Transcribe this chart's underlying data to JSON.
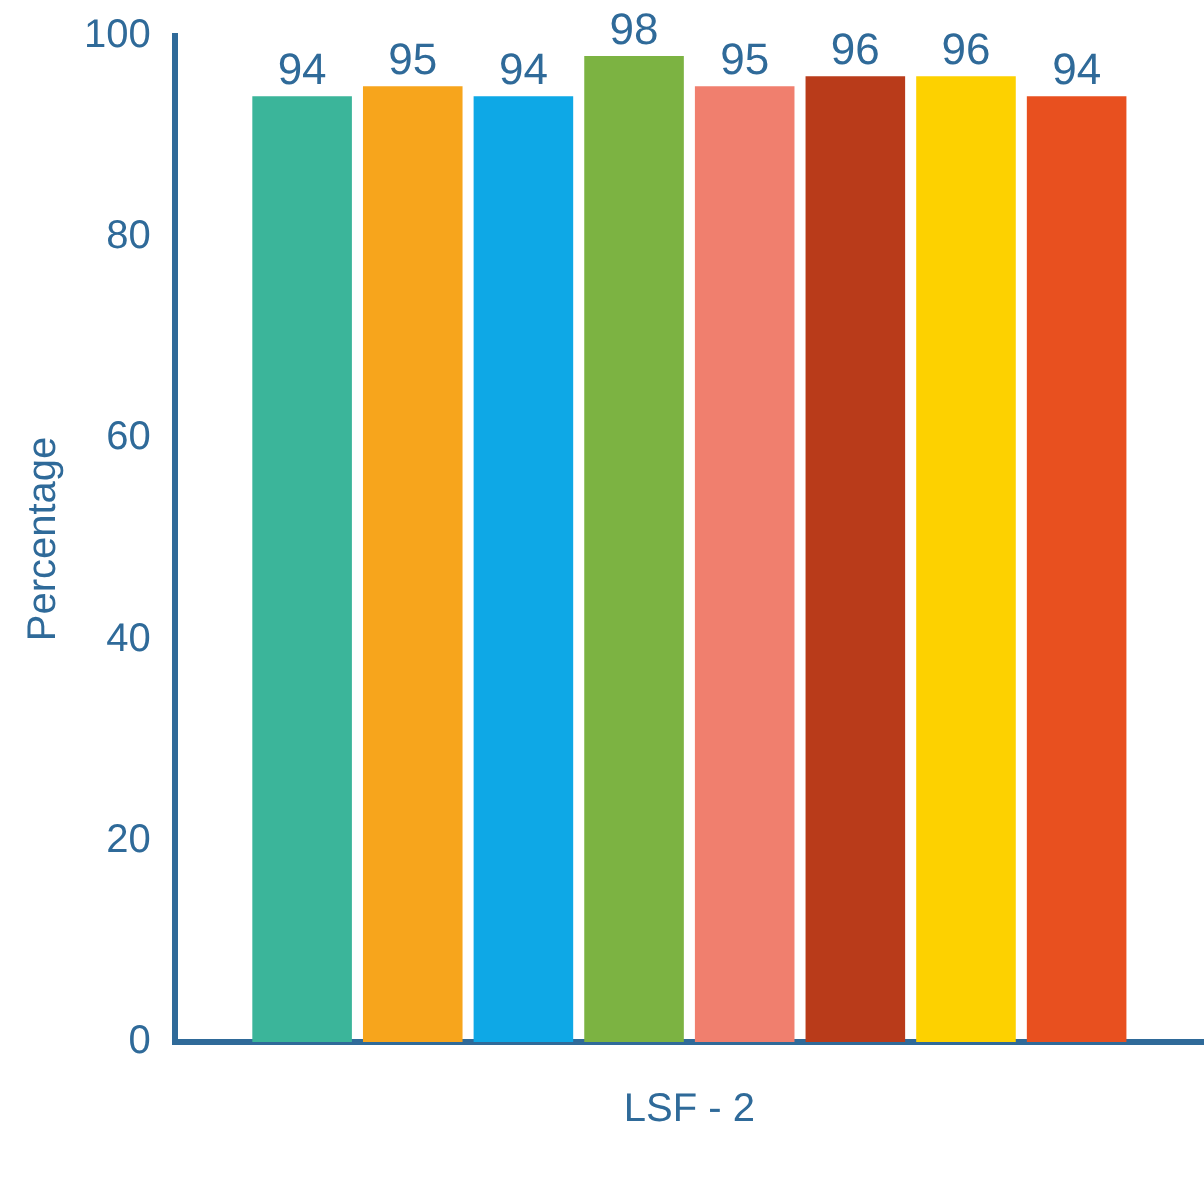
{
  "chart_data": {
    "type": "bar",
    "ylabel": "Percentage",
    "categories": [
      "LSF - 2"
    ],
    "series": [
      {
        "color": "#3bb59a",
        "values": [
          94
        ]
      },
      {
        "color": "#f7a51c",
        "values": [
          95
        ]
      },
      {
        "color": "#0ea8e6",
        "values": [
          94
        ]
      },
      {
        "color": "#7cb342",
        "values": [
          98
        ]
      },
      {
        "color": "#f07f6e",
        "values": [
          95
        ]
      },
      {
        "color": "#b93b1a",
        "values": [
          96
        ]
      },
      {
        "color": "#fdd100",
        "values": [
          96
        ]
      },
      {
        "color": "#e8501f",
        "values": [
          94
        ]
      }
    ],
    "ylim": [
      0,
      100
    ],
    "yticks": [
      0,
      20,
      40,
      60,
      80,
      100
    ],
    "grid": false,
    "legend": false,
    "data_labels": true
  }
}
